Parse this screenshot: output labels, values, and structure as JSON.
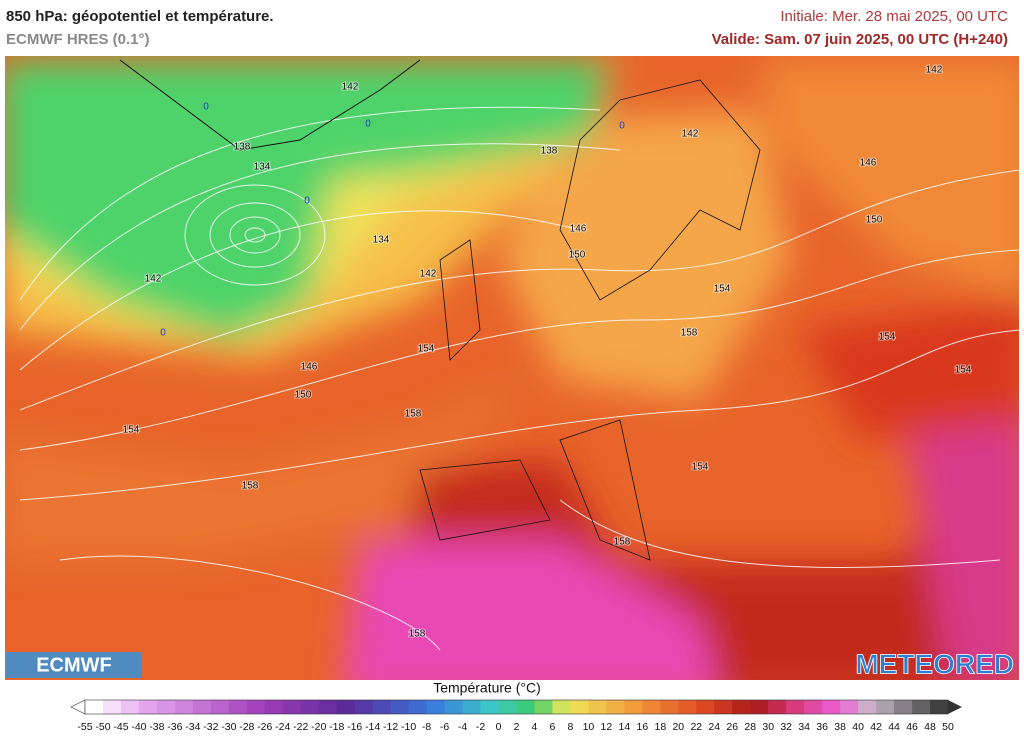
{
  "header": {
    "title": "850 hPa: géopotentiel et température.",
    "subtitle": "ECMWF HRES (0.1°)",
    "initial": "Initiale: Mer. 28 mai 2025, 00 UTC",
    "valid": "Valide: Sam. 07 juin 2025, 00 UTC (H+240)"
  },
  "map": {
    "contour_labels": [
      142,
      138,
      134,
      138,
      142,
      142,
      146,
      150,
      134,
      146,
      150,
      142,
      142,
      154,
      158,
      154,
      154,
      154,
      146,
      150,
      158,
      154,
      154,
      158,
      158,
      158
    ],
    "isotherm_labels": [
      0,
      0,
      0,
      0,
      0
    ]
  },
  "logos": {
    "left": "ECMWF",
    "right": "METEORED"
  },
  "colorbar": {
    "title": "Température (°C)",
    "labels": [
      -55,
      -50,
      -45,
      -40,
      -38,
      -36,
      -34,
      -32,
      -30,
      -28,
      -26,
      -24,
      -22,
      -20,
      -18,
      -16,
      -14,
      -12,
      -10,
      -8,
      -6,
      -4,
      -2,
      0,
      2,
      4,
      6,
      8,
      10,
      12,
      14,
      16,
      18,
      20,
      22,
      24,
      26,
      28,
      30,
      32,
      34,
      36,
      38,
      40,
      42,
      44,
      46,
      48,
      50
    ]
  }
}
